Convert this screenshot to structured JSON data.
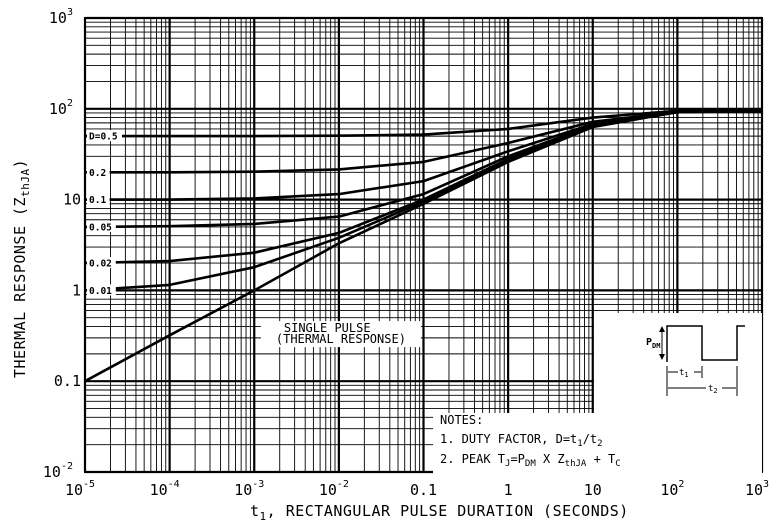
{
  "chart_data": {
    "type": "line",
    "x_scale": "log",
    "y_scale": "log",
    "xlim": [
      1e-05,
      1000
    ],
    "ylim": [
      0.01,
      1000
    ],
    "grid": true,
    "x_ticks": [
      {
        "base": "10",
        "exp": "-5",
        "v": 1e-05
      },
      {
        "base": "10",
        "exp": "-4",
        "v": 0.0001
      },
      {
        "base": "10",
        "exp": "-3",
        "v": 0.001
      },
      {
        "base": "10",
        "exp": "-2",
        "v": 0.01
      },
      {
        "base": "0.1",
        "exp": "",
        "v": 0.1
      },
      {
        "base": "1",
        "exp": "",
        "v": 1
      },
      {
        "base": "10",
        "exp": "",
        "v": 10
      },
      {
        "base": "10",
        "exp": "2",
        "v": 100
      },
      {
        "base": "10",
        "exp": "3",
        "v": 1000
      }
    ],
    "y_ticks": [
      {
        "base": "10",
        "exp": "-2",
        "v": 0.01
      },
      {
        "base": "0.1",
        "exp": "",
        "v": 0.1
      },
      {
        "base": "1",
        "exp": "",
        "v": 1
      },
      {
        "base": "10",
        "exp": "",
        "v": 10
      },
      {
        "base": "10",
        "exp": "2",
        "v": 100
      },
      {
        "base": "10",
        "exp": "3",
        "v": 1000
      }
    ],
    "x_label_parts": {
      "t": "t",
      "sub": "1",
      "rest": ",  RECTANGULAR PULSE DURATION  (SECONDS)"
    },
    "y_label_parts": {
      "main": "THERMAL RESPONSE  (Z",
      "sub": "thJA",
      "close": ")"
    },
    "series": [
      {
        "name": "D=0.5",
        "x": [
          1e-05,
          0.0001,
          0.001,
          0.01,
          0.1,
          1,
          10,
          100,
          1000
        ],
        "y": [
          50,
          50,
          50,
          50.5,
          52,
          60,
          80,
          95,
          95
        ]
      },
      {
        "name": "0.2",
        "x": [
          1e-05,
          0.0001,
          0.001,
          0.01,
          0.1,
          1,
          10,
          100,
          1000
        ],
        "y": [
          20,
          20,
          20.3,
          21.5,
          26,
          42,
          72,
          93,
          95
        ]
      },
      {
        "name": "0.1",
        "x": [
          1e-05,
          0.0001,
          0.001,
          0.01,
          0.1,
          1,
          10,
          100,
          1000
        ],
        "y": [
          10,
          10,
          10.3,
          11.5,
          16,
          34,
          68,
          92,
          95
        ]
      },
      {
        "name": "0.05",
        "x": [
          1e-05,
          0.0001,
          0.001,
          0.01,
          0.1,
          1,
          10,
          100,
          1000
        ],
        "y": [
          5,
          5.1,
          5.4,
          6.5,
          11.5,
          30,
          66,
          92,
          95
        ]
      },
      {
        "name": "0.02",
        "x": [
          1e-05,
          0.0001,
          0.001,
          0.01,
          0.1,
          1,
          10,
          100,
          1000
        ],
        "y": [
          2,
          2.1,
          2.6,
          4.3,
          10,
          28,
          65,
          92,
          95
        ]
      },
      {
        "name": "0.01",
        "x": [
          1e-05,
          0.0001,
          0.001,
          0.01,
          0.1,
          1,
          10,
          100,
          1000
        ],
        "y": [
          1,
          1.15,
          1.8,
          3.8,
          9.5,
          27,
          64,
          92,
          95
        ]
      },
      {
        "name": "SINGLE PULSE",
        "x": [
          1e-05,
          0.0001,
          0.001,
          0.01,
          0.1,
          1,
          10,
          100,
          1000
        ],
        "y": [
          0.1,
          0.32,
          1,
          3.3,
          9,
          26,
          63,
          92,
          95
        ]
      }
    ],
    "series_labels": [
      {
        "text": "D=0.5",
        "v": 50
      },
      {
        "text": "0.2",
        "v": 20
      },
      {
        "text": "0.1",
        "v": 10
      },
      {
        "text": "0.05",
        "v": 5
      },
      {
        "text": "0.02",
        "v": 2
      },
      {
        "text": "0.01",
        "v": 1
      }
    ],
    "annotation": {
      "line1": "SINGLE PULSE",
      "line2": "(THERMAL RESPONSE)",
      "x": 0.01,
      "y": 0.33
    },
    "notes": {
      "title": "NOTES:",
      "note1_text": "1. DUTY FACTOR, D=t",
      "note1_s1": "1",
      "note1_mid": "/t",
      "note1_s2": "2",
      "note2_a": "2. PEAK T",
      "note2_s1": "J",
      "note2_b": "=P",
      "note2_s2": "DM",
      "note2_c": " X Z",
      "note2_s3": "thJA",
      "note2_d": " + T",
      "note2_s4": "C"
    },
    "inset": {
      "p_label": "P",
      "p_sub": "DM",
      "t1_label": "t",
      "t1_sub": "1",
      "t2_label": "t",
      "t2_sub": "2"
    }
  }
}
